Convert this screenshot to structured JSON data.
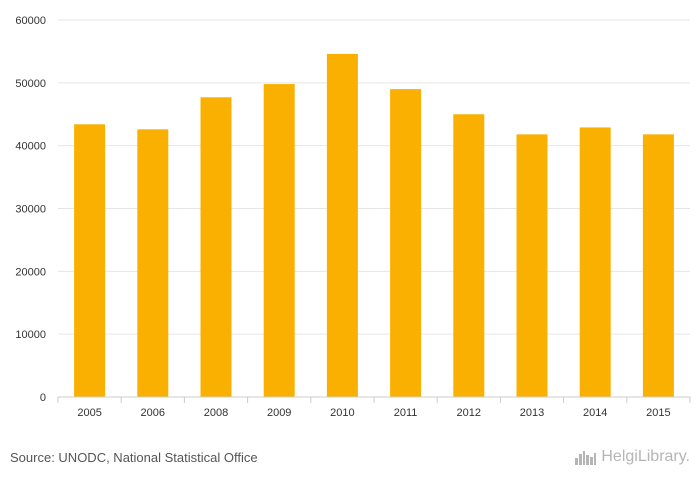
{
  "chart_data": {
    "type": "bar",
    "categories": [
      "2005",
      "2006",
      "2008",
      "2009",
      "2010",
      "2011",
      "2012",
      "2013",
      "2014",
      "2015"
    ],
    "values": [
      43400,
      42600,
      47700,
      49800,
      54600,
      49000,
      45000,
      41800,
      42900,
      41800
    ],
    "ylim": [
      0,
      60000
    ],
    "yticks": [
      0,
      10000,
      20000,
      30000,
      40000,
      50000,
      60000
    ],
    "title": "",
    "xlabel": "",
    "ylabel": "",
    "grid": true,
    "bar_color": "#F9B000"
  },
  "footer": {
    "source": "Source: UNODC, National Statistical Office",
    "brand": "HelgiLibrary."
  },
  "colors": {
    "grid": "#e6e6e6",
    "axis": "#cccccc",
    "text": "#333333",
    "brand": "#b5b5b5"
  },
  "icons": {
    "brand_logo": "city-skyline-icon"
  }
}
